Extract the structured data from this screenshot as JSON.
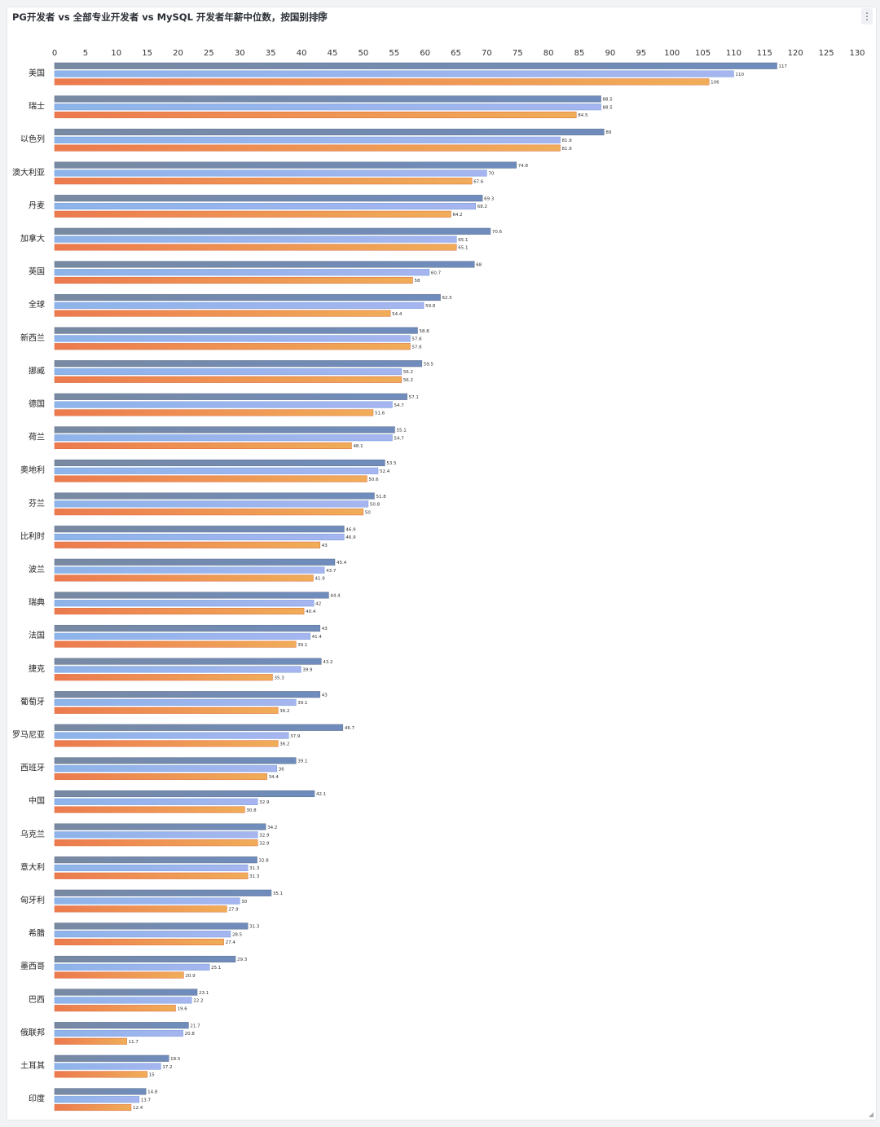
{
  "panel": {
    "title": "PG开发者 vs 全部专业开发者 vs MySQL 开发者年薪中位数，按国别排序",
    "info_icon": "info-icon",
    "menu_icon": "kebab-menu-icon",
    "menu_glyph": "⋮",
    "info_glyph": "i"
  },
  "chart_data": {
    "type": "bar",
    "orientation": "horizontal",
    "title": "PG开发者 vs 全部专业开发者 vs MySQL 开发者年薪中位数，按国别排序",
    "xlim": [
      0,
      130
    ],
    "xticks": [
      0,
      5,
      10,
      15,
      20,
      25,
      30,
      35,
      40,
      45,
      50,
      55,
      60,
      65,
      70,
      75,
      80,
      85,
      90,
      95,
      100,
      105,
      110,
      115,
      120,
      125,
      130
    ],
    "grid": false,
    "legend": "none",
    "categories": [
      "美国",
      "瑞士",
      "以色列",
      "澳大利亚",
      "丹麦",
      "加拿大",
      "英国",
      "全球",
      "新西兰",
      "挪威",
      "德国",
      "荷兰",
      "奥地利",
      "芬兰",
      "比利时",
      "波兰",
      "瑞典",
      "法国",
      "捷克",
      "葡萄牙",
      "罗马尼亚",
      "西班牙",
      "中国",
      "乌克兰",
      "意大利",
      "匈牙利",
      "希腊",
      "墨西哥",
      "巴西",
      "俄联邦",
      "土耳其",
      "印度"
    ],
    "series": [
      {
        "values": [
          117,
          88.5,
          89,
          74.8,
          69.3,
          70.6,
          68,
          62.5,
          58.8,
          59.5,
          57.1,
          55.1,
          53.5,
          51.8,
          46.9,
          45.4,
          44.4,
          43,
          43.2,
          43,
          46.7,
          39.1,
          42.1,
          34.2,
          32.8,
          35.1,
          31.3,
          29.3,
          23.1,
          21.7,
          18.5,
          14.8
        ]
      },
      {
        "values": [
          110,
          88.5,
          81.9,
          70,
          68.2,
          65.1,
          60.7,
          59.8,
          57.6,
          56.2,
          54.7,
          54.7,
          52.4,
          50.8,
          46.9,
          43.7,
          42,
          41.4,
          39.9,
          39.1,
          37.9,
          36,
          32.9,
          32.9,
          31.3,
          30,
          28.5,
          25.1,
          22.2,
          20.8,
          17.2,
          13.7
        ]
      },
      {
        "values": [
          106,
          84.5,
          81.9,
          67.6,
          64.2,
          65.1,
          58,
          54.4,
          57.6,
          56.2,
          51.6,
          48.1,
          50.6,
          50,
          43,
          41.9,
          40.4,
          39.1,
          35.3,
          36.2,
          36.2,
          34.4,
          30.8,
          32.9,
          31.3,
          27.9,
          27.4,
          20.9,
          19.6,
          11.7,
          15,
          12.4
        ]
      }
    ]
  }
}
